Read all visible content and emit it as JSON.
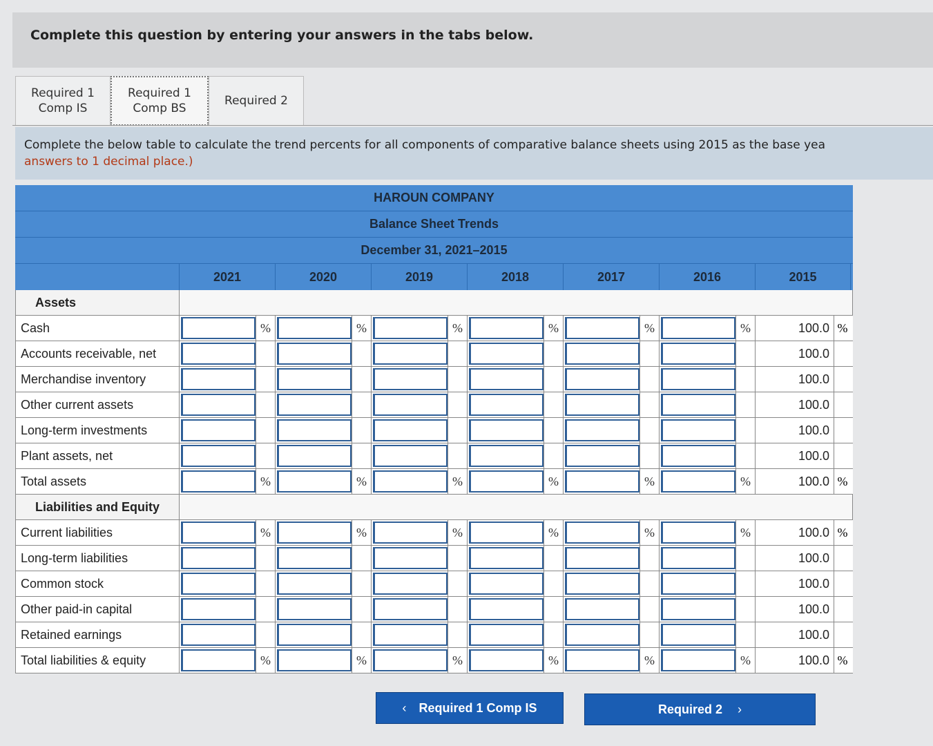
{
  "header": {
    "instruction": "Complete this question by entering your answers in the tabs below."
  },
  "tabs": [
    [
      "Required 1",
      "Comp IS"
    ],
    [
      "Required 1",
      "Comp BS"
    ],
    [
      "Required 2"
    ]
  ],
  "prompt": {
    "text": "Complete the below table to calculate the trend percents for all components of comparative balance sheets using 2015 as the base yea",
    "note": "answers to 1 decimal place.)"
  },
  "table": {
    "title": "HAROUN COMPANY",
    "subtitle": "Balance Sheet Trends",
    "period": "December 31, 2021–2015",
    "columns": [
      "2021",
      "2020",
      "2019",
      "2018",
      "2017",
      "2016",
      "2015"
    ],
    "percent_sign": "%",
    "sections": [
      {
        "heading": "Assets",
        "rows": [
          {
            "label": "Cash",
            "base": "100.0",
            "percent": true
          },
          {
            "label": "Accounts receivable, net",
            "base": "100.0",
            "percent": false
          },
          {
            "label": "Merchandise inventory",
            "base": "100.0",
            "percent": false
          },
          {
            "label": "Other current assets",
            "base": "100.0",
            "percent": false
          },
          {
            "label": "Long-term investments",
            "base": "100.0",
            "percent": false
          },
          {
            "label": "Plant assets, net",
            "base": "100.0",
            "percent": false
          },
          {
            "label": "Total assets",
            "base": "100.0",
            "percent": true
          }
        ]
      },
      {
        "heading": "Liabilities and Equity",
        "rows": [
          {
            "label": "Current liabilities",
            "base": "100.0",
            "percent": true
          },
          {
            "label": "Long-term liabilities",
            "base": "100.0",
            "percent": false
          },
          {
            "label": "Common stock",
            "base": "100.0",
            "percent": false
          },
          {
            "label": "Other paid-in capital",
            "base": "100.0",
            "percent": false
          },
          {
            "label": "Retained earnings",
            "base": "100.0",
            "percent": false
          },
          {
            "label": "Total liabilities & equity",
            "base": "100.0",
            "percent": true
          }
        ]
      }
    ]
  },
  "buttons": {
    "prev": "Required 1 Comp IS",
    "next": "Required 2"
  }
}
